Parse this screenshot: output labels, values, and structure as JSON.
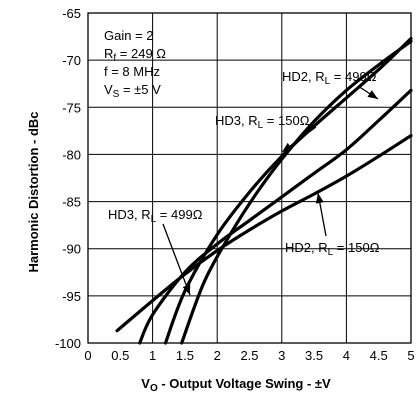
{
  "chart_data": {
    "type": "line",
    "xlabel": "V_O - Output Voltage Swing - ±V",
    "ylabel": "Harmonic Distortion - dBc",
    "xlim": [
      0,
      5
    ],
    "ylim": [
      -100,
      -65
    ],
    "x_ticks": [
      "0",
      "0.5",
      "1",
      "1.5",
      "2",
      "2.5",
      "3",
      "3.5",
      "4",
      "4.5",
      "5"
    ],
    "y_ticks": [
      "-65",
      "-70",
      "-75",
      "-80",
      "-85",
      "-90",
      "-95",
      "-100"
    ],
    "grid": true,
    "conditions": {
      "gain": "Gain = 2",
      "rf": "249 Ω",
      "f": "f = 8 MHz",
      "vs": "±5 V"
    },
    "series": [
      {
        "name": "HD2, RL = 499Ω",
        "label_main": "HD2, R",
        "label_sub": "L",
        "label_tail": " = 499Ω",
        "x": [
          1.2,
          1.5,
          2.0,
          2.5,
          3.0,
          3.5,
          4.0,
          4.5,
          5.0
        ],
        "y": [
          -100,
          -94.5,
          -88.5,
          -84,
          -80.2,
          -77,
          -74,
          -71,
          -67.7
        ]
      },
      {
        "name": "HD3, RL = 150Ω",
        "label_main": "HD3, R",
        "label_sub": "L",
        "label_tail": " = 150Ω",
        "x": [
          1.45,
          1.8,
          2.2,
          2.6,
          3.0,
          3.5,
          4.0,
          4.5,
          5.0
        ],
        "y": [
          -100,
          -93.5,
          -88.5,
          -84.2,
          -80.5,
          -76.5,
          -73.2,
          -70.5,
          -68.0
        ]
      },
      {
        "name": "HD3, RL = 499Ω",
        "label_main": "HD3, R",
        "label_sub": "L",
        "label_tail": " = 499Ω",
        "x": [
          0.8,
          1.0,
          1.5,
          2.0,
          2.5,
          3.0,
          3.5,
          4.0,
          4.5,
          5.0
        ],
        "y": [
          -100,
          -97,
          -92.5,
          -89.5,
          -87,
          -84.5,
          -82,
          -79.5,
          -76.4,
          -73.2
        ]
      },
      {
        "name": "HD2, RL = 150Ω",
        "label_main": "HD2, R",
        "label_sub": "L",
        "label_tail": " = 150Ω",
        "x": [
          0.45,
          1.0,
          1.5,
          2.0,
          2.5,
          3.0,
          3.5,
          4.0,
          4.5,
          5.0
        ],
        "y": [
          -98.7,
          -95.5,
          -92.7,
          -90.2,
          -88.0,
          -86.0,
          -84.2,
          -82.3,
          -80.2,
          -78.0
        ]
      }
    ]
  }
}
